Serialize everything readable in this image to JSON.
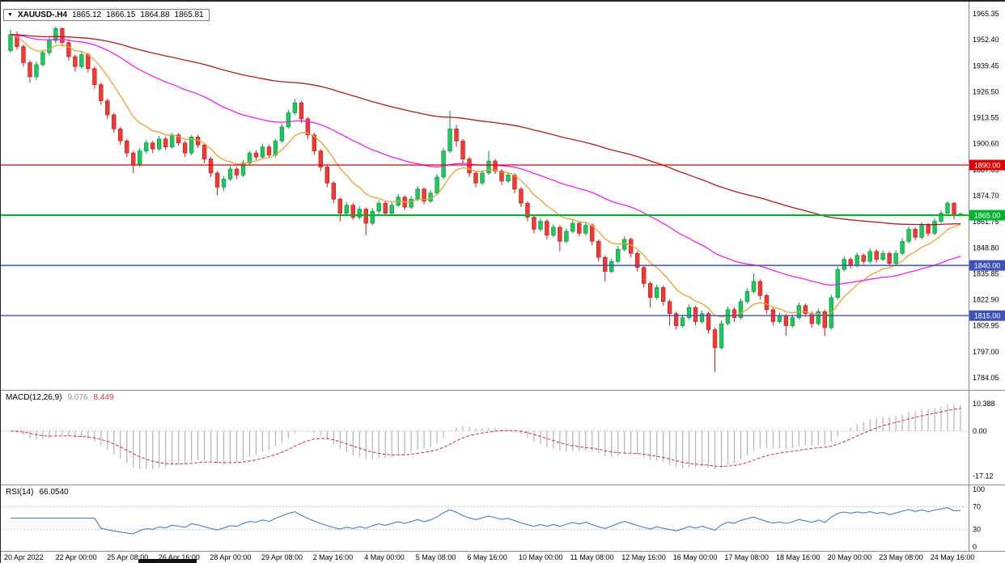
{
  "title": {
    "symbol_period": "XAUUSD-.H4",
    "open": "1865.12",
    "high": "1866.15",
    "low": "1864.88",
    "close": "1865.81"
  },
  "chart_data": {
    "type": "candlestick",
    "symbol": "XAUUSD-",
    "timeframe": "H4",
    "main": {
      "price_range": [
        1784.05,
        1965.35
      ],
      "price_axis_labels": [
        "1965.35",
        "1952.40",
        "1939.45",
        "1926.50",
        "1913.55",
        "1900.60",
        "1887.65",
        "1874.70",
        "1861.75",
        "1848.80",
        "1835.85",
        "1822.90",
        "1809.95",
        "1797.00",
        "1784.05"
      ],
      "colors": {
        "up": "#22c55e",
        "up_stroke": "#128a42",
        "down": "#ef3b36",
        "down_stroke": "#b11e1e"
      },
      "hlines": [
        {
          "price": 1890,
          "label": "1890.00",
          "color": "#dd0000",
          "width": 1.2
        },
        {
          "price": 1865,
          "label": "1865.00",
          "color": "#00b32c",
          "width": 2.2
        },
        {
          "price": 1840,
          "label": "1840.00",
          "color": "#3f51b5",
          "width": 1.4
        },
        {
          "price": 1815,
          "label": "1815.00",
          "color": "#3f51b5",
          "width": 1.4
        }
      ],
      "moving_averages": [
        {
          "name": "fast",
          "period": 10,
          "color": "#e2a33b"
        },
        {
          "name": "medium",
          "period": 45,
          "color": "#ee22ee"
        },
        {
          "name": "slow",
          "period": 120,
          "color": "#aa1c1c"
        }
      ],
      "candles": [
        [
          1947,
          1957.5,
          1946,
          1955
        ],
        [
          1955,
          1956.5,
          1947.5,
          1949
        ],
        [
          1949,
          1950,
          1939,
          1941
        ],
        [
          1941,
          1942,
          1931,
          1934
        ],
        [
          1934,
          1941.5,
          1932.5,
          1940
        ],
        [
          1940,
          1947.5,
          1939,
          1946
        ],
        [
          1946,
          1953.5,
          1944.5,
          1952
        ],
        [
          1952,
          1959,
          1950.5,
          1958
        ],
        [
          1958,
          1958.5,
          1949,
          1951
        ],
        [
          1951,
          1952,
          1942,
          1944
        ],
        [
          1944,
          1945,
          1936.5,
          1939
        ],
        [
          1939,
          1946.5,
          1938,
          1945
        ],
        [
          1945,
          1946,
          1936,
          1938
        ],
        [
          1938,
          1939,
          1928,
          1930
        ],
        [
          1930,
          1931,
          1920,
          1922
        ],
        [
          1922,
          1923,
          1913,
          1915
        ],
        [
          1915,
          1916,
          1906,
          1908
        ],
        [
          1908,
          1909,
          1900,
          1902
        ],
        [
          1902,
          1903,
          1894,
          1896
        ],
        [
          1896,
          1897,
          1886,
          1890
        ],
        [
          1890,
          1898.5,
          1889,
          1897
        ],
        [
          1897,
          1902.5,
          1895.5,
          1901
        ],
        [
          1901,
          1902,
          1896,
          1898
        ],
        [
          1898,
          1904.5,
          1897,
          1903
        ],
        [
          1903,
          1904,
          1897.5,
          1899
        ],
        [
          1899,
          1906,
          1898,
          1905
        ],
        [
          1905,
          1906,
          1899.5,
          1901
        ],
        [
          1901,
          1902,
          1894,
          1896
        ],
        [
          1896,
          1905,
          1895,
          1904
        ],
        [
          1904,
          1905,
          1898.5,
          1900
        ],
        [
          1900,
          1901,
          1891,
          1893
        ],
        [
          1893,
          1894,
          1884,
          1886
        ],
        [
          1886,
          1887,
          1875,
          1879
        ],
        [
          1879,
          1884.5,
          1877,
          1883
        ],
        [
          1883,
          1889.5,
          1882,
          1888
        ],
        [
          1888,
          1889,
          1883,
          1885
        ],
        [
          1885,
          1892.5,
          1884,
          1891
        ],
        [
          1891,
          1897,
          1890,
          1896
        ],
        [
          1896,
          1897.5,
          1892.5,
          1894
        ],
        [
          1894,
          1900.5,
          1893,
          1899
        ],
        [
          1899,
          1900,
          1893.5,
          1895
        ],
        [
          1895,
          1903,
          1894,
          1902
        ],
        [
          1902,
          1910.5,
          1901,
          1909
        ],
        [
          1909,
          1917.5,
          1908,
          1916
        ],
        [
          1916,
          1923,
          1915,
          1921
        ],
        [
          1921,
          1922,
          1911,
          1913
        ],
        [
          1913,
          1914,
          1903,
          1905
        ],
        [
          1905,
          1906,
          1895,
          1897
        ],
        [
          1897,
          1898,
          1887,
          1889
        ],
        [
          1889,
          1890,
          1879,
          1881
        ],
        [
          1881,
          1882,
          1871,
          1873
        ],
        [
          1873,
          1874,
          1862,
          1866
        ],
        [
          1866,
          1871.5,
          1864.5,
          1870
        ],
        [
          1870,
          1871,
          1862.5,
          1864
        ],
        [
          1864,
          1869.5,
          1863,
          1868
        ],
        [
          1868,
          1869,
          1855,
          1861
        ],
        [
          1861,
          1868.5,
          1860,
          1867
        ],
        [
          1867,
          1872.5,
          1865.5,
          1871
        ],
        [
          1871,
          1872,
          1864.5,
          1866
        ],
        [
          1866,
          1871.5,
          1865,
          1870
        ],
        [
          1870,
          1875.5,
          1869,
          1874
        ],
        [
          1874,
          1875,
          1867.5,
          1869
        ],
        [
          1869,
          1874.5,
          1868,
          1873
        ],
        [
          1873,
          1879.5,
          1872,
          1878
        ],
        [
          1878,
          1879,
          1870.5,
          1872
        ],
        [
          1872,
          1877.5,
          1871,
          1876
        ],
        [
          1876,
          1885.5,
          1875,
          1884
        ],
        [
          1884,
          1898.5,
          1883,
          1897
        ],
        [
          1897,
          1917,
          1896,
          1908
        ],
        [
          1908,
          1910,
          1899,
          1902
        ],
        [
          1902,
          1903,
          1891,
          1893
        ],
        [
          1893,
          1894,
          1884,
          1886
        ],
        [
          1886,
          1887,
          1879,
          1881
        ],
        [
          1881,
          1887.5,
          1880,
          1886
        ],
        [
          1886,
          1897,
          1885,
          1892
        ],
        [
          1892,
          1893,
          1885.5,
          1887
        ],
        [
          1887,
          1888,
          1880,
          1882
        ],
        [
          1882,
          1886.5,
          1881,
          1885
        ],
        [
          1885,
          1886,
          1876,
          1878
        ],
        [
          1878,
          1879,
          1869,
          1871
        ],
        [
          1871,
          1872,
          1862,
          1864
        ],
        [
          1864,
          1865,
          1856,
          1858
        ],
        [
          1858,
          1863.5,
          1857,
          1862
        ],
        [
          1862,
          1863,
          1853,
          1855
        ],
        [
          1855,
          1860.5,
          1854,
          1859
        ],
        [
          1859,
          1860,
          1847,
          1852
        ],
        [
          1852,
          1858.5,
          1851,
          1857
        ],
        [
          1857,
          1862.5,
          1856,
          1861
        ],
        [
          1861,
          1862,
          1854.5,
          1856
        ],
        [
          1856,
          1861.5,
          1855,
          1860
        ],
        [
          1860,
          1861,
          1850,
          1852
        ],
        [
          1852,
          1853,
          1842,
          1844
        ],
        [
          1844,
          1845,
          1832,
          1837
        ],
        [
          1837,
          1843.5,
          1836,
          1842
        ],
        [
          1842,
          1849.5,
          1841,
          1848
        ],
        [
          1848,
          1854.5,
          1847,
          1853
        ],
        [
          1853,
          1854,
          1844,
          1846
        ],
        [
          1846,
          1847,
          1837,
          1839
        ],
        [
          1839,
          1840,
          1829,
          1831
        ],
        [
          1831,
          1832,
          1819,
          1824
        ],
        [
          1824,
          1830.5,
          1823,
          1829
        ],
        [
          1829,
          1830,
          1820,
          1822
        ],
        [
          1822,
          1823,
          1810,
          1816
        ],
        [
          1816,
          1817,
          1808,
          1810
        ],
        [
          1810,
          1815.5,
          1809,
          1814
        ],
        [
          1814,
          1820.5,
          1813,
          1819
        ],
        [
          1819,
          1820,
          1810,
          1812
        ],
        [
          1812,
          1817.5,
          1811,
          1816
        ],
        [
          1816,
          1817,
          1806,
          1808
        ],
        [
          1808,
          1809,
          1787,
          1799
        ],
        [
          1799,
          1812.5,
          1798,
          1811
        ],
        [
          1811,
          1819.5,
          1810,
          1818
        ],
        [
          1818,
          1819,
          1812,
          1814
        ],
        [
          1814,
          1823.5,
          1813,
          1822
        ],
        [
          1822,
          1828.5,
          1821,
          1827
        ],
        [
          1827,
          1836,
          1826,
          1832
        ],
        [
          1832,
          1833,
          1823,
          1825
        ],
        [
          1825,
          1826,
          1816,
          1818
        ],
        [
          1818,
          1819,
          1810,
          1812
        ],
        [
          1812,
          1816.5,
          1811,
          1815
        ],
        [
          1815,
          1816,
          1805,
          1810
        ],
        [
          1810,
          1815.5,
          1809,
          1814
        ],
        [
          1814,
          1821.5,
          1813,
          1820
        ],
        [
          1820,
          1821,
          1814.5,
          1816
        ],
        [
          1816,
          1817,
          1809,
          1811
        ],
        [
          1811,
          1818.5,
          1810,
          1817
        ],
        [
          1817,
          1818,
          1805,
          1809
        ],
        [
          1809,
          1825.5,
          1808,
          1824
        ],
        [
          1824,
          1839.5,
          1823,
          1838
        ],
        [
          1838,
          1844.5,
          1837,
          1843
        ],
        [
          1843,
          1844,
          1838.5,
          1840
        ],
        [
          1840,
          1846.5,
          1839,
          1845
        ],
        [
          1845,
          1846,
          1840.5,
          1842
        ],
        [
          1842,
          1848.5,
          1841,
          1847
        ],
        [
          1847,
          1848,
          1841.5,
          1843
        ],
        [
          1843,
          1847.5,
          1842,
          1846
        ],
        [
          1846,
          1847,
          1839.5,
          1841
        ],
        [
          1841,
          1847.5,
          1840,
          1846
        ],
        [
          1846,
          1853.5,
          1845,
          1852
        ],
        [
          1852,
          1859.5,
          1851,
          1858
        ],
        [
          1858,
          1859,
          1852.5,
          1854
        ],
        [
          1854,
          1861.5,
          1853,
          1860
        ],
        [
          1860,
          1861,
          1854.5,
          1856
        ],
        [
          1856,
          1863.5,
          1855,
          1862
        ],
        [
          1862,
          1867.5,
          1861,
          1866
        ],
        [
          1866,
          1872,
          1865,
          1871
        ],
        [
          1871,
          1871.5,
          1863,
          1865
        ],
        [
          1865.12,
          1866.15,
          1864.88,
          1865.81
        ]
      ]
    },
    "macd": {
      "label": "MACD(12,26,9)",
      "value_main": "9.076",
      "value_signal": "8.449",
      "fast": 12,
      "slow": 26,
      "signal_period": 9,
      "range": [
        -18.5,
        13.5
      ],
      "axis_labels": [
        "10.388",
        "0.00",
        "-17.12"
      ],
      "bar_color": "#b4b4b4",
      "signal_color": "#c23b3b"
    },
    "rsi": {
      "label": "RSI(14)",
      "value": "66.0540",
      "period": 14,
      "levels": [
        70,
        30
      ],
      "axis_labels": [
        "100",
        "70",
        "30",
        "0"
      ],
      "line_color": "#4a7ebb",
      "level_color": "#b9c4e0"
    },
    "time_axis": [
      "20 Apr 2022",
      "22 Apr 00:00",
      "25 Apr 08:00",
      "26 Apr 16:00",
      "28 Apr 00:00",
      "29 Apr 08:00",
      "2 May 16:00",
      "4 May 00:00",
      "5 May 08:00",
      "6 May 16:00",
      "10 May 00:00",
      "11 May 08:00",
      "12 May 16:00",
      "16 May 00:00",
      "17 May 08:00",
      "18 May 16:00",
      "20 May 00:00",
      "23 May 08:00",
      "24 May 16:00"
    ]
  }
}
